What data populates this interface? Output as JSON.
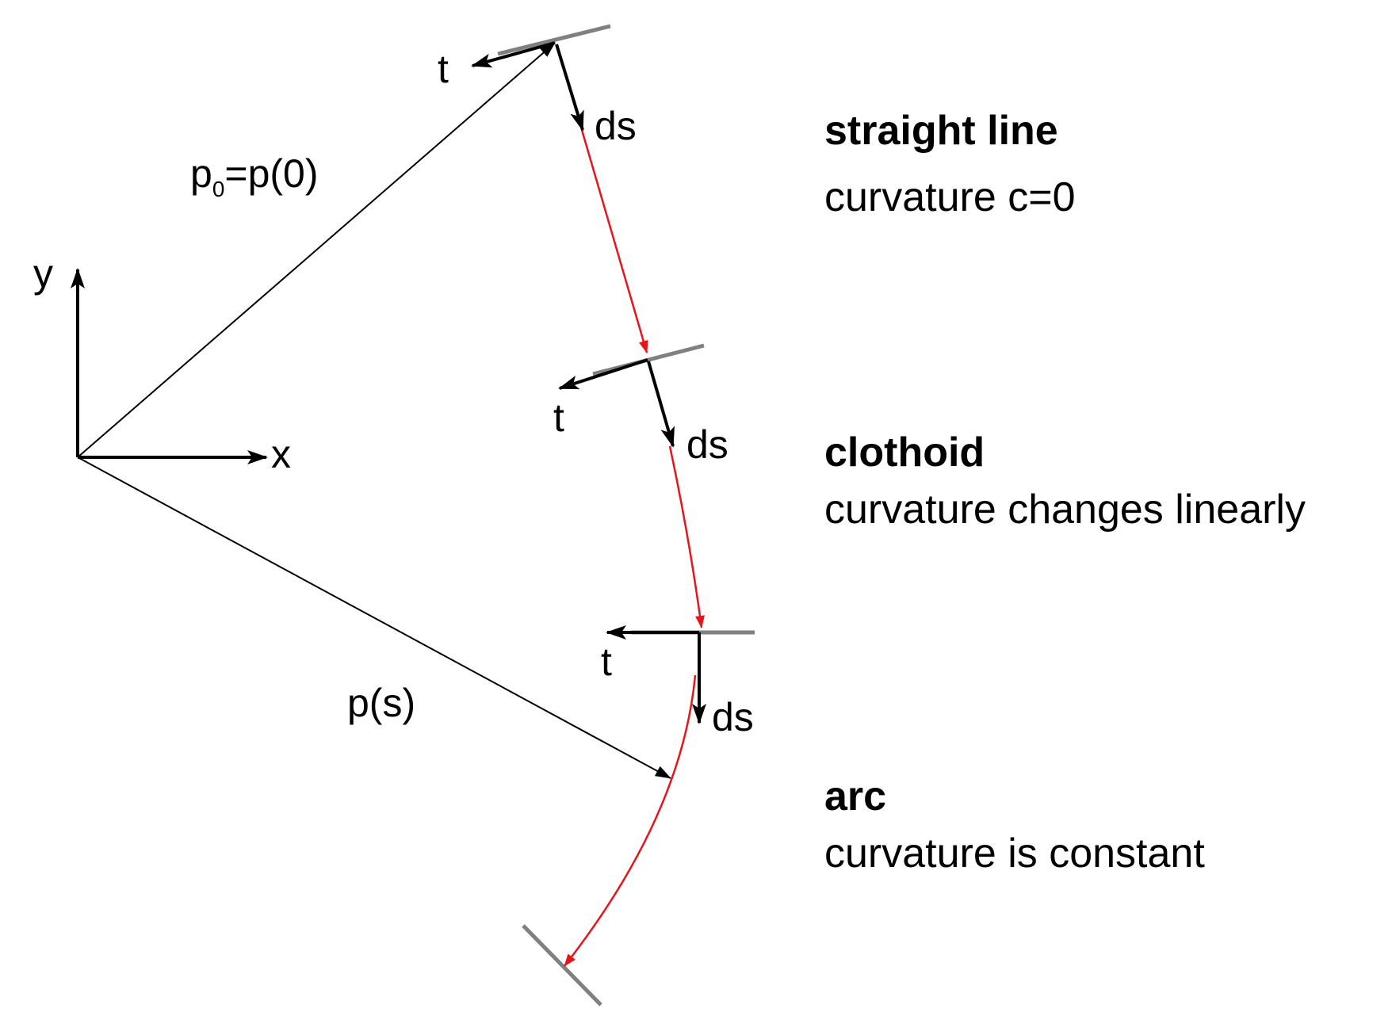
{
  "labels": {
    "origin_vector": {
      "main": "p",
      "sub": "0",
      "rest": "=p(0)"
    },
    "path_vector": "p(s)",
    "y_axis": "y",
    "x_axis": "x",
    "tangent": "t",
    "ds": "ds"
  },
  "segments": [
    {
      "title": "straight line",
      "description": "curvature c=0"
    },
    {
      "title": "clothoid",
      "description": "curvature changes linearly"
    },
    {
      "title": "arc",
      "description": "curvature is constant"
    }
  ],
  "colors": {
    "curve": "#e8141c",
    "axis": "#000000",
    "boundary_line": "#808080"
  }
}
